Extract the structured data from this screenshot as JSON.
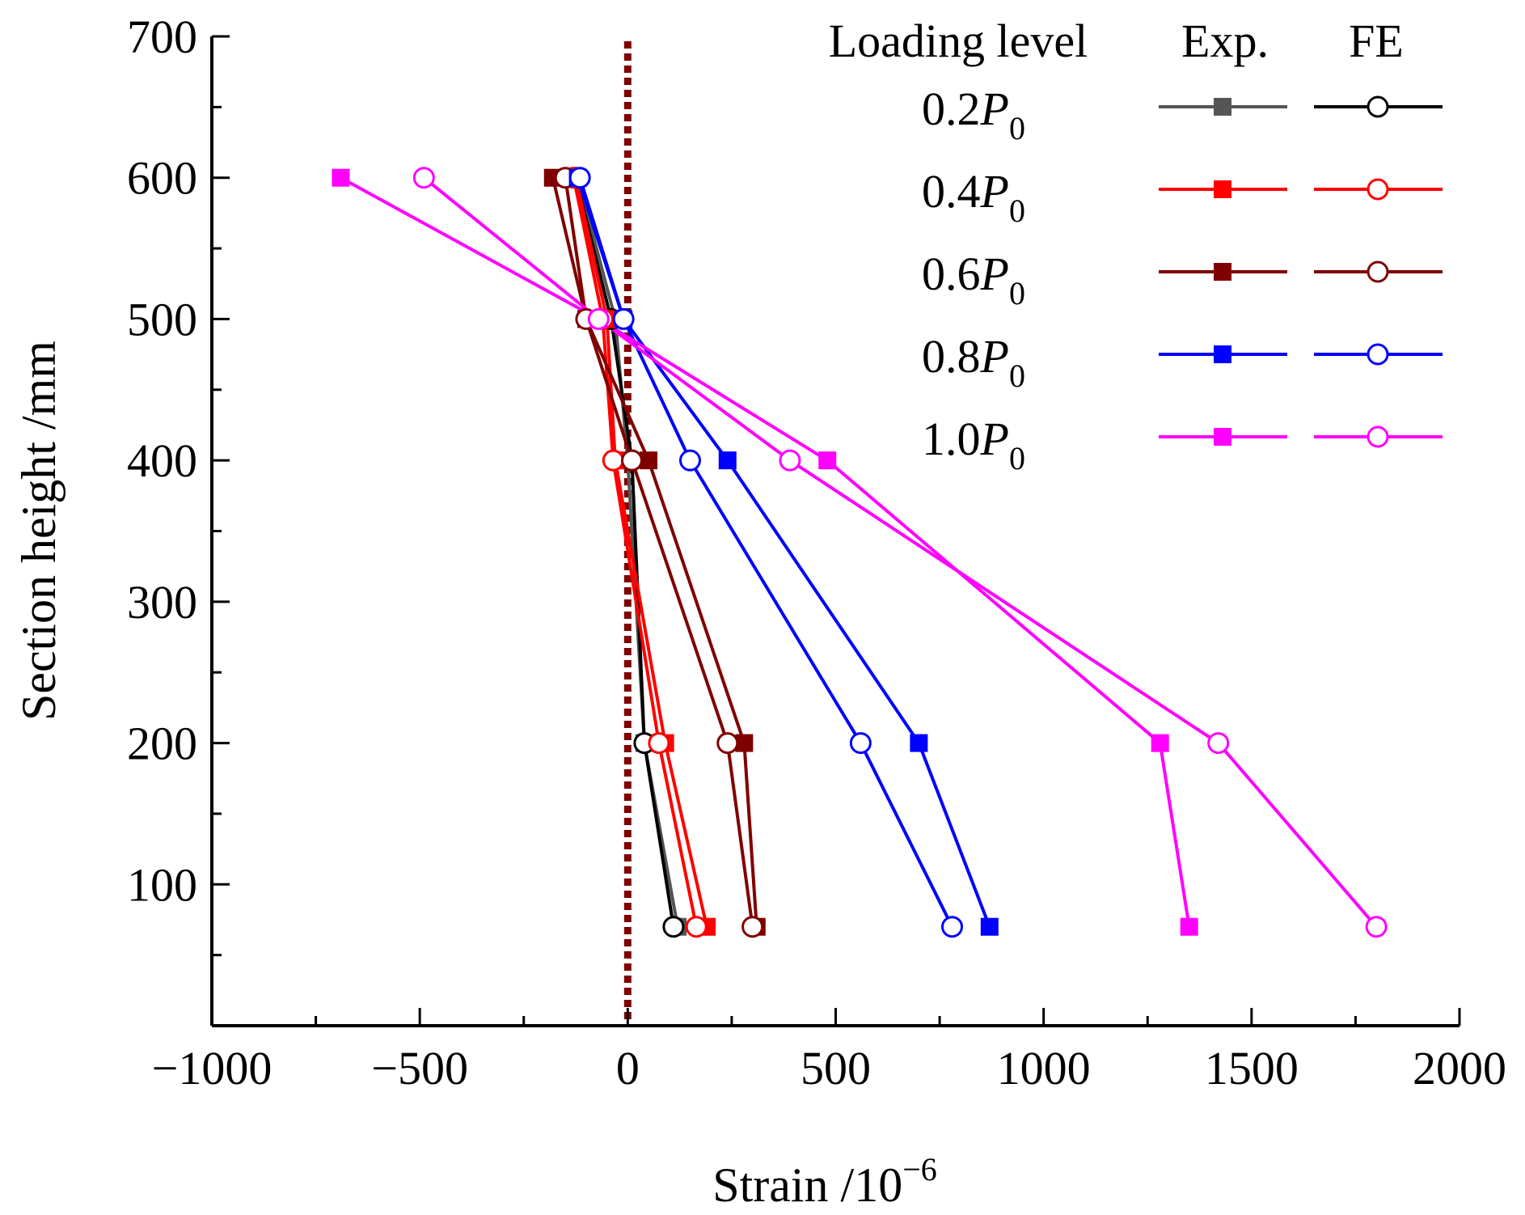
{
  "chart_data": {
    "type": "line",
    "xlabel": "Strain /10",
    "xlabel_exponent": "−6",
    "ylabel": "Section height /mm",
    "xlim": [
      -1000,
      2000
    ],
    "ylim": [
      0,
      700
    ],
    "x_ticks": [
      -1000,
      -500,
      0,
      500,
      1000,
      1500,
      2000
    ],
    "x_tick_labels": [
      "−1000",
      "−500",
      "0",
      "500",
      "1000",
      "1500",
      "2000"
    ],
    "y_ticks": [
      100,
      200,
      300,
      400,
      500,
      600,
      700
    ],
    "y_tick_labels": [
      "100",
      "200",
      "300",
      "400",
      "500",
      "600",
      "700"
    ],
    "reference_line": {
      "x": 0,
      "color": "#800000",
      "style": "dotted"
    },
    "legend": {
      "title": "Loading level",
      "col_exp": "Exp.",
      "col_fe": "FE",
      "entries": [
        {
          "prefix": "0.2",
          "symbol": "P",
          "subscript": "0"
        },
        {
          "prefix": "0.4",
          "symbol": "P",
          "subscript": "0"
        },
        {
          "prefix": "0.6",
          "symbol": "P",
          "subscript": "0"
        },
        {
          "prefix": "0.8",
          "symbol": "P",
          "subscript": "0"
        },
        {
          "prefix": "1.0",
          "symbol": "P",
          "subscript": "0"
        }
      ]
    },
    "series": [
      {
        "name": "0.2P0 Exp.",
        "kind": "exp",
        "color": "#555555",
        "line_color": "#555555",
        "points": [
          [
            -120,
            600
          ],
          [
            -30,
            500
          ],
          [
            0,
            400
          ],
          [
            40,
            200
          ],
          [
            120,
            70
          ]
        ]
      },
      {
        "name": "0.2P0 FE",
        "kind": "fe",
        "color": "#000000",
        "line_color": "#000000",
        "points": [
          [
            -125,
            600
          ],
          [
            -40,
            500
          ],
          [
            10,
            400
          ],
          [
            40,
            200
          ],
          [
            110,
            70
          ]
        ]
      },
      {
        "name": "0.4P0 Exp.",
        "kind": "exp",
        "color": "#ff0000",
        "line_color": "#ff0000",
        "points": [
          [
            -125,
            600
          ],
          [
            -50,
            500
          ],
          [
            -30,
            400
          ],
          [
            90,
            200
          ],
          [
            190,
            70
          ]
        ]
      },
      {
        "name": "0.4P0 FE",
        "kind": "fe",
        "color": "#ff0000",
        "line_color": "#ff0000",
        "points": [
          [
            -130,
            600
          ],
          [
            -60,
            500
          ],
          [
            -35,
            400
          ],
          [
            75,
            200
          ],
          [
            165,
            70
          ]
        ]
      },
      {
        "name": "0.6P0 Exp.",
        "kind": "exp",
        "color": "#800000",
        "line_color": "#800000",
        "points": [
          [
            -180,
            600
          ],
          [
            -100,
            500
          ],
          [
            50,
            400
          ],
          [
            280,
            200
          ],
          [
            310,
            70
          ]
        ]
      },
      {
        "name": "0.6P0 FE",
        "kind": "fe",
        "color": "#800000",
        "line_color": "#800000",
        "points": [
          [
            -150,
            600
          ],
          [
            -100,
            500
          ],
          [
            10,
            400
          ],
          [
            240,
            200
          ],
          [
            300,
            70
          ]
        ]
      },
      {
        "name": "0.8P0 Exp.",
        "kind": "exp",
        "color": "#0000ff",
        "line_color": "#0000ff",
        "points": [
          [
            -120,
            600
          ],
          [
            -10,
            500
          ],
          [
            240,
            400
          ],
          [
            700,
            200
          ],
          [
            870,
            70
          ]
        ]
      },
      {
        "name": "0.8P0 FE",
        "kind": "fe",
        "color": "#0000ff",
        "line_color": "#0000ff",
        "points": [
          [
            -115,
            600
          ],
          [
            -10,
            500
          ],
          [
            150,
            400
          ],
          [
            560,
            200
          ],
          [
            780,
            70
          ]
        ]
      },
      {
        "name": "1.0P0 Exp.",
        "kind": "exp",
        "color": "#ff00ff",
        "line_color": "#ff00ff",
        "points": [
          [
            -690,
            600
          ],
          [
            -70,
            500
          ],
          [
            480,
            400
          ],
          [
            1280,
            200
          ],
          [
            1350,
            70
          ]
        ]
      },
      {
        "name": "1.0P0 FE",
        "kind": "fe",
        "color": "#ff00ff",
        "line_color": "#ff00ff",
        "points": [
          [
            -490,
            600
          ],
          [
            -70,
            500
          ],
          [
            390,
            400
          ],
          [
            1420,
            200
          ],
          [
            1800,
            70
          ]
        ]
      }
    ]
  }
}
